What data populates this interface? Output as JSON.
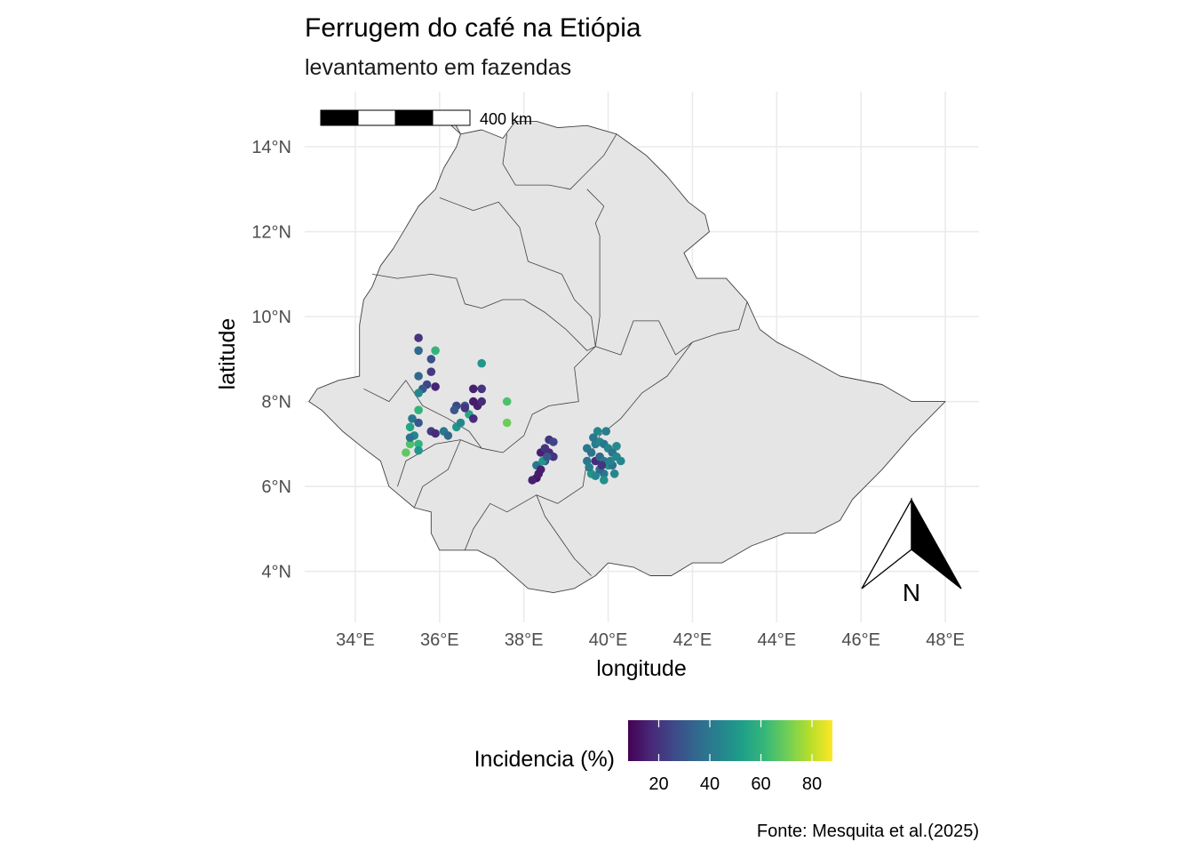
{
  "chart_data": {
    "type": "scatter",
    "title": "Ferrugem do café na Etiópia",
    "subtitle": "levantamento em fazendas",
    "xlabel": "longitude",
    "ylabel": "latitude",
    "caption": "Fonte: Mesquita et al.(2025)",
    "xlim": [
      32.8,
      48.8
    ],
    "ylim": [
      2.8,
      15.3
    ],
    "x_ticks": [
      34,
      36,
      38,
      40,
      42,
      44,
      46,
      48
    ],
    "x_tick_labels": [
      "34°E",
      "36°E",
      "38°E",
      "40°E",
      "42°E",
      "44°E",
      "46°E",
      "48°E"
    ],
    "y_ticks": [
      4,
      6,
      8,
      10,
      12,
      14
    ],
    "y_tick_labels": [
      "4°N",
      "6°N",
      "8°N",
      "10°N",
      "12°N",
      "14°N"
    ],
    "grid": true,
    "legend": {
      "title": "Incidencia (%)",
      "placement": "bottom",
      "range": [
        8,
        88
      ],
      "ticks": [
        20,
        40,
        60,
        80
      ],
      "tick_labels": [
        "20",
        "40",
        "60",
        "80"
      ],
      "palette": [
        "#440154",
        "#482878",
        "#3e4989",
        "#31688e",
        "#26828e",
        "#1f9e89",
        "#35b779",
        "#6ece58",
        "#b5de2b",
        "#fde725"
      ]
    },
    "scale_bar": {
      "label": "400 km"
    },
    "north_arrow": {
      "label": "N"
    },
    "map_fill": "#e5e5e5",
    "map_stroke": "#404040",
    "country_outline": [
      [
        35.95,
        14.8
      ],
      [
        36.2,
        14.85
      ],
      [
        36.5,
        14.3
      ],
      [
        37.0,
        14.4
      ],
      [
        37.5,
        14.2
      ],
      [
        37.8,
        14.6
      ],
      [
        38.3,
        14.6
      ],
      [
        38.8,
        14.45
      ],
      [
        39.5,
        14.5
      ],
      [
        40.2,
        14.3
      ],
      [
        40.9,
        13.8
      ],
      [
        41.4,
        13.3
      ],
      [
        41.9,
        12.7
      ],
      [
        42.3,
        12.4
      ],
      [
        42.4,
        12.0
      ],
      [
        41.8,
        11.5
      ],
      [
        42.1,
        10.9
      ],
      [
        42.8,
        10.9
      ],
      [
        43.3,
        10.35
      ],
      [
        43.6,
        9.7
      ],
      [
        44.0,
        9.4
      ],
      [
        44.6,
        9.1
      ],
      [
        45.5,
        8.6
      ],
      [
        46.5,
        8.4
      ],
      [
        47.2,
        8.0
      ],
      [
        48.0,
        8.0
      ],
      [
        47.2,
        7.2
      ],
      [
        46.5,
        6.4
      ],
      [
        45.8,
        5.7
      ],
      [
        45.5,
        5.2
      ],
      [
        44.9,
        4.9
      ],
      [
        44.2,
        4.9
      ],
      [
        43.4,
        4.6
      ],
      [
        42.7,
        4.2
      ],
      [
        42.0,
        4.2
      ],
      [
        41.5,
        3.9
      ],
      [
        41.0,
        3.9
      ],
      [
        40.6,
        4.1
      ],
      [
        40.0,
        4.2
      ],
      [
        39.7,
        3.9
      ],
      [
        39.2,
        3.6
      ],
      [
        38.7,
        3.5
      ],
      [
        38.1,
        3.6
      ],
      [
        37.3,
        4.3
      ],
      [
        36.9,
        4.5
      ],
      [
        36.0,
        4.5
      ],
      [
        35.8,
        4.9
      ],
      [
        35.8,
        5.4
      ],
      [
        35.4,
        5.5
      ],
      [
        34.8,
        6.0
      ],
      [
        34.6,
        6.6
      ],
      [
        34.2,
        6.9
      ],
      [
        33.7,
        7.3
      ],
      [
        33.2,
        7.8
      ],
      [
        32.9,
        8.0
      ],
      [
        33.1,
        8.3
      ],
      [
        33.6,
        8.5
      ],
      [
        34.1,
        8.6
      ],
      [
        34.1,
        9.2
      ],
      [
        34.1,
        9.8
      ],
      [
        34.2,
        10.4
      ],
      [
        34.4,
        10.7
      ],
      [
        34.6,
        11.2
      ],
      [
        34.9,
        11.6
      ],
      [
        35.2,
        12.1
      ],
      [
        35.5,
        12.6
      ],
      [
        35.9,
        13.0
      ],
      [
        36.1,
        13.5
      ],
      [
        36.4,
        14.0
      ],
      [
        36.5,
        14.3
      ],
      [
        35.95,
        14.8
      ]
    ],
    "region_borders": [
      [
        [
          37.6,
          14.3
        ],
        [
          37.5,
          13.6
        ],
        [
          37.8,
          13.1
        ],
        [
          38.6,
          13.1
        ],
        [
          39.1,
          13.0
        ],
        [
          39.4,
          13.3
        ],
        [
          39.9,
          13.8
        ],
        [
          40.2,
          14.3
        ]
      ],
      [
        [
          39.5,
          13.0
        ],
        [
          39.9,
          12.6
        ],
        [
          39.7,
          12.2
        ],
        [
          39.8,
          11.9
        ],
        [
          39.8,
          11.2
        ],
        [
          39.8,
          10.6
        ],
        [
          39.8,
          10.0
        ],
        [
          39.7,
          9.3
        ],
        [
          40.3,
          9.1
        ],
        [
          40.6,
          9.9
        ],
        [
          41.2,
          9.9
        ],
        [
          41.6,
          9.1
        ],
        [
          42.0,
          9.4
        ],
        [
          42.6,
          9.6
        ],
        [
          43.1,
          9.7
        ],
        [
          43.3,
          10.35
        ]
      ],
      [
        [
          36.0,
          12.8
        ],
        [
          36.8,
          12.5
        ],
        [
          37.4,
          12.7
        ],
        [
          37.9,
          12.1
        ],
        [
          38.1,
          11.3
        ],
        [
          38.9,
          11.0
        ],
        [
          39.2,
          10.4
        ],
        [
          39.6,
          10.0
        ],
        [
          39.7,
          9.3
        ]
      ],
      [
        [
          34.4,
          11.0
        ],
        [
          35.0,
          10.9
        ],
        [
          35.8,
          11.0
        ],
        [
          36.4,
          10.9
        ],
        [
          36.6,
          10.3
        ],
        [
          37.0,
          10.2
        ],
        [
          37.5,
          10.4
        ],
        [
          38.0,
          10.4
        ],
        [
          38.5,
          10.1
        ],
        [
          39.0,
          9.7
        ],
        [
          39.5,
          9.2
        ],
        [
          39.7,
          9.3
        ]
      ],
      [
        [
          39.7,
          9.3
        ],
        [
          39.2,
          8.8
        ],
        [
          39.3,
          8.0
        ],
        [
          38.6,
          7.9
        ],
        [
          38.2,
          7.7
        ],
        [
          38.0,
          7.2
        ],
        [
          37.5,
          6.8
        ],
        [
          37.0,
          6.9
        ],
        [
          36.7,
          7.3
        ],
        [
          36.2,
          7.6
        ],
        [
          35.6,
          7.9
        ],
        [
          35.2,
          8.5
        ],
        [
          34.8,
          8.0
        ],
        [
          34.2,
          8.3
        ]
      ],
      [
        [
          42.0,
          9.4
        ],
        [
          41.4,
          8.6
        ],
        [
          40.8,
          8.2
        ],
        [
          40.3,
          7.6
        ],
        [
          39.8,
          7.2
        ],
        [
          39.5,
          6.6
        ],
        [
          39.4,
          6.0
        ],
        [
          38.8,
          5.6
        ],
        [
          38.3,
          5.8
        ],
        [
          37.6,
          5.4
        ],
        [
          37.2,
          5.6
        ],
        [
          36.8,
          5.0
        ],
        [
          36.6,
          4.5
        ]
      ],
      [
        [
          38.3,
          5.8
        ],
        [
          38.5,
          5.3
        ],
        [
          39.2,
          4.3
        ],
        [
          39.6,
          3.9
        ]
      ],
      [
        [
          35.0,
          6.0
        ],
        [
          35.2,
          6.6
        ],
        [
          35.9,
          7.0
        ],
        [
          36.5,
          7.1
        ],
        [
          37.0,
          6.9
        ]
      ],
      [
        [
          36.5,
          7.1
        ],
        [
          36.2,
          6.4
        ],
        [
          35.6,
          6.0
        ],
        [
          35.4,
          5.5
        ]
      ]
    ],
    "series": [
      {
        "points": [
          [
            35.5,
            9.5,
            20
          ],
          [
            35.5,
            9.2,
            35
          ],
          [
            35.9,
            9.2,
            60
          ],
          [
            35.8,
            9.0,
            28
          ],
          [
            35.5,
            8.6,
            35
          ],
          [
            35.7,
            8.4,
            25
          ],
          [
            35.6,
            8.3,
            30
          ],
          [
            35.8,
            8.7,
            22
          ],
          [
            35.9,
            8.35,
            16
          ],
          [
            35.5,
            8.2,
            45
          ],
          [
            35.5,
            7.8,
            60
          ],
          [
            35.35,
            7.6,
            40
          ],
          [
            35.5,
            7.5,
            30
          ],
          [
            35.3,
            7.4,
            55
          ],
          [
            35.4,
            7.2,
            45
          ],
          [
            35.5,
            7.0,
            60
          ],
          [
            35.3,
            7.0,
            65
          ],
          [
            35.2,
            6.8,
            68
          ],
          [
            35.5,
            6.85,
            50
          ],
          [
            35.3,
            7.15,
            38
          ],
          [
            35.8,
            7.3,
            22
          ],
          [
            35.9,
            7.25,
            18
          ],
          [
            36.1,
            7.3,
            40
          ],
          [
            36.2,
            7.2,
            35
          ],
          [
            36.4,
            7.4,
            50
          ],
          [
            36.5,
            7.5,
            45
          ],
          [
            36.4,
            7.9,
            25
          ],
          [
            36.6,
            7.9,
            30
          ],
          [
            36.7,
            7.7,
            55
          ],
          [
            36.8,
            7.6,
            18
          ],
          [
            36.6,
            7.85,
            20
          ],
          [
            36.9,
            7.9,
            15
          ],
          [
            36.8,
            8.3,
            15
          ],
          [
            37.0,
            8.3,
            20
          ],
          [
            36.8,
            8.0,
            14
          ],
          [
            37.0,
            8.0,
            18
          ],
          [
            37.0,
            8.9,
            50
          ],
          [
            37.6,
            8.0,
            65
          ],
          [
            37.6,
            7.5,
            70
          ],
          [
            36.35,
            7.8,
            30
          ],
          [
            38.4,
            6.8,
            15
          ],
          [
            38.5,
            6.9,
            20
          ],
          [
            38.5,
            6.6,
            25
          ],
          [
            38.6,
            7.1,
            20
          ],
          [
            38.6,
            6.8,
            18
          ],
          [
            38.3,
            6.5,
            40
          ],
          [
            38.4,
            6.4,
            15
          ],
          [
            38.3,
            6.2,
            12
          ],
          [
            38.2,
            6.15,
            15
          ],
          [
            38.45,
            6.6,
            50
          ],
          [
            38.7,
            6.7,
            20
          ],
          [
            38.7,
            7.05,
            25
          ],
          [
            38.55,
            6.7,
            30
          ],
          [
            38.35,
            6.3,
            14
          ],
          [
            39.5,
            6.9,
            40
          ],
          [
            39.7,
            7.0,
            42
          ],
          [
            39.8,
            7.05,
            45
          ],
          [
            39.9,
            7.0,
            40
          ],
          [
            40.0,
            6.9,
            45
          ],
          [
            39.6,
            6.8,
            38
          ],
          [
            39.7,
            6.6,
            18
          ],
          [
            39.8,
            6.7,
            35
          ],
          [
            39.9,
            6.6,
            40
          ],
          [
            40.1,
            6.8,
            38
          ],
          [
            40.2,
            6.7,
            45
          ],
          [
            40.0,
            6.5,
            48
          ],
          [
            39.6,
            6.3,
            50
          ],
          [
            39.7,
            6.25,
            45
          ],
          [
            39.9,
            6.3,
            40
          ],
          [
            40.3,
            6.6,
            45
          ],
          [
            39.5,
            6.6,
            40
          ],
          [
            39.8,
            6.4,
            35
          ],
          [
            40.1,
            6.5,
            38
          ],
          [
            39.75,
            7.3,
            45
          ],
          [
            39.95,
            7.3,
            42
          ],
          [
            39.85,
            6.5,
            20
          ],
          [
            40.05,
            6.6,
            44
          ],
          [
            39.55,
            6.45,
            42
          ],
          [
            40.15,
            6.3,
            45
          ],
          [
            39.65,
            7.15,
            40
          ],
          [
            40.2,
            6.95,
            46
          ],
          [
            39.9,
            6.15,
            48
          ]
        ]
      }
    ]
  }
}
